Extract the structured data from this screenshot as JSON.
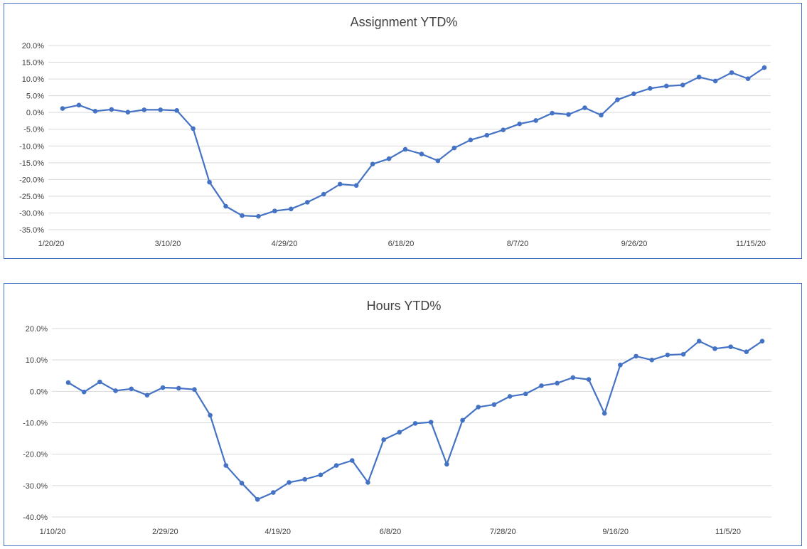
{
  "chart_data": [
    {
      "type": "line",
      "title": "Assignment YTD%",
      "xlabel": "",
      "ylabel": "",
      "ylim": [
        -35,
        20
      ],
      "yticks": [
        20,
        15,
        10,
        5,
        0,
        -5,
        -10,
        -15,
        -20,
        -25,
        -30,
        -35
      ],
      "ytick_labels": [
        "20.0%",
        "15.0%",
        "10.0%",
        "5.0%",
        "0.0%",
        "-5.0%",
        "-10.0%",
        "-15.0%",
        "-20.0%",
        "-25.0%",
        "-30.0%",
        "-35.0%"
      ],
      "xtick_labels": [
        "1/20/20",
        "3/10/20",
        "4/29/20",
        "6/18/20",
        "8/7/20",
        "9/26/20",
        "11/15/20"
      ],
      "grid": true,
      "legend": "none",
      "color": "#4472c4",
      "values": [
        1.2,
        2.2,
        0.4,
        0.9,
        0.1,
        0.8,
        0.8,
        0.6,
        -4.8,
        -20.8,
        -28.0,
        -30.8,
        -31.0,
        -29.4,
        -28.8,
        -26.8,
        -24.4,
        -21.4,
        -21.8,
        -15.4,
        -13.8,
        -11.0,
        -12.4,
        -14.4,
        -10.6,
        -8.2,
        -6.8,
        -5.2,
        -3.4,
        -2.4,
        -0.2,
        -0.6,
        1.4,
        -0.8,
        3.8,
        5.6,
        7.2,
        7.9,
        8.2,
        10.6,
        9.4,
        11.9,
        10.1,
        13.4
      ]
    },
    {
      "type": "line",
      "title": "Hours YTD%",
      "xlabel": "",
      "ylabel": "",
      "ylim": [
        -40,
        20
      ],
      "yticks": [
        20,
        10,
        0,
        -10,
        -20,
        -30,
        -40
      ],
      "ytick_labels": [
        "20.0%",
        "10.0%",
        "0.0%",
        "-10.0%",
        "-20.0%",
        "-30.0%",
        "-40.0%"
      ],
      "xtick_labels": [
        "1/10/20",
        "2/29/20",
        "4/19/20",
        "6/8/20",
        "7/28/20",
        "9/16/20",
        "11/5/20"
      ],
      "grid": true,
      "legend": "none",
      "color": "#4472c4",
      "values": [
        2.8,
        -0.2,
        3.0,
        0.2,
        0.8,
        -1.2,
        1.2,
        1.0,
        0.6,
        -7.6,
        -23.6,
        -29.2,
        -34.4,
        -32.2,
        -29.0,
        -28.0,
        -26.6,
        -23.6,
        -22.0,
        -29.0,
        -15.4,
        -13.0,
        -10.2,
        -9.8,
        -23.2,
        -9.2,
        -5.0,
        -4.2,
        -1.6,
        -0.8,
        1.8,
        2.6,
        4.4,
        3.8,
        -7.0,
        8.4,
        11.2,
        10.0,
        11.6,
        11.8,
        16.0,
        13.6,
        14.2,
        12.6,
        16.0
      ]
    }
  ]
}
